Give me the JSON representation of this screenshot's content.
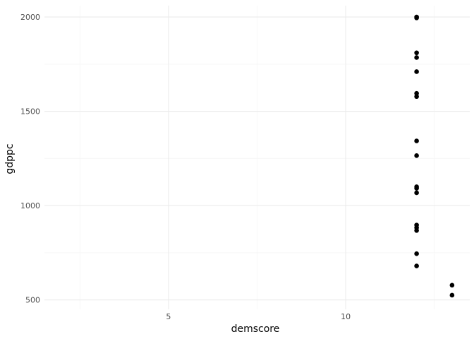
{
  "chart_data": {
    "type": "scatter",
    "title": "",
    "xlabel": "demscore",
    "ylabel": "gdppc",
    "xlim": [
      1.5,
      13.5
    ],
    "ylim": [
      450,
      2060
    ],
    "x_ticks": [
      5,
      10
    ],
    "x_tick_labels": [
      "5",
      "10"
    ],
    "x_minor_ticks": [
      2.5,
      7.5,
      12.5
    ],
    "y_ticks": [
      500,
      1000,
      1500,
      2000
    ],
    "y_tick_labels": [
      "500",
      "1000",
      "1500",
      "2000"
    ],
    "y_minor_ticks": [
      750,
      1250,
      1750
    ],
    "grid": true,
    "legend": "none",
    "colors": {
      "point": "#000000",
      "major_grid": "#ebebeb",
      "minor_grid": "#f5f5f5",
      "background": "#ffffff"
    },
    "points": [
      {
        "x": 12,
        "y": 2000
      },
      {
        "x": 12,
        "y": 1995
      },
      {
        "x": 12,
        "y": 1810
      },
      {
        "x": 12,
        "y": 1785
      },
      {
        "x": 12,
        "y": 1710
      },
      {
        "x": 12,
        "y": 1595
      },
      {
        "x": 12,
        "y": 1578
      },
      {
        "x": 12,
        "y": 1343
      },
      {
        "x": 12,
        "y": 1265
      },
      {
        "x": 12,
        "y": 1100
      },
      {
        "x": 12,
        "y": 1092
      },
      {
        "x": 12,
        "y": 1068
      },
      {
        "x": 12,
        "y": 897
      },
      {
        "x": 12,
        "y": 883
      },
      {
        "x": 12,
        "y": 868
      },
      {
        "x": 12,
        "y": 745
      },
      {
        "x": 12,
        "y": 680
      },
      {
        "x": 13,
        "y": 578
      },
      {
        "x": 13,
        "y": 525
      }
    ]
  }
}
